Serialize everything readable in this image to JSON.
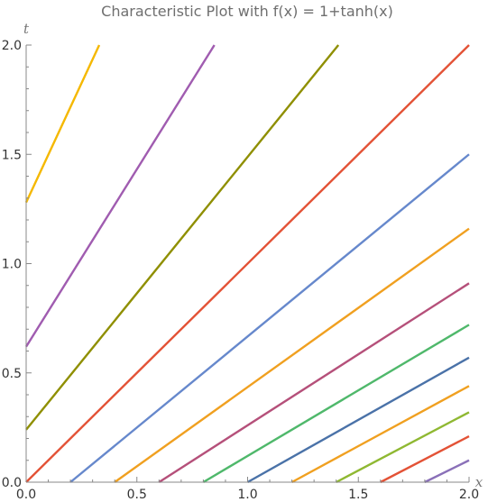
{
  "chart_data": {
    "type": "line",
    "title": "Characteristic Plot with f(x) = 1+tanh(x)",
    "xlabel": "x",
    "ylabel": "t",
    "xlim": [
      0,
      2
    ],
    "ylim": [
      0,
      2
    ],
    "x_ticks": [
      "0.0",
      "0.5",
      "1.0",
      "1.5",
      "2.0"
    ],
    "y_ticks": [
      "0.0",
      "0.5",
      "1.0",
      "1.5",
      "2.0"
    ],
    "grid": false,
    "legend": "none",
    "series": [
      {
        "color": "#f5b800",
        "points": [
          [
            0.0,
            1.28
          ],
          [
            0.33,
            2.0
          ]
        ]
      },
      {
        "color": "#a05cb0",
        "points": [
          [
            0.0,
            0.62
          ],
          [
            0.85,
            2.0
          ]
        ]
      },
      {
        "color": "#8f8f00",
        "points": [
          [
            0.0,
            0.24
          ],
          [
            1.41,
            2.0
          ]
        ]
      },
      {
        "color": "#e35236",
        "points": [
          [
            0.0,
            0.0
          ],
          [
            2.0,
            2.0
          ]
        ]
      },
      {
        "color": "#6688cc",
        "points": [
          [
            0.2,
            0.0
          ],
          [
            2.0,
            1.5
          ]
        ]
      },
      {
        "color": "#f0a020",
        "points": [
          [
            0.4,
            0.0
          ],
          [
            2.0,
            1.16
          ]
        ]
      },
      {
        "color": "#b5507a",
        "points": [
          [
            0.6,
            0.0
          ],
          [
            2.0,
            0.91
          ]
        ]
      },
      {
        "color": "#4fb86b",
        "points": [
          [
            0.8,
            0.0
          ],
          [
            2.0,
            0.72
          ]
        ]
      },
      {
        "color": "#4a72a8",
        "points": [
          [
            1.0,
            0.0
          ],
          [
            2.0,
            0.57
          ]
        ]
      },
      {
        "color": "#f0a020",
        "points": [
          [
            1.2,
            0.0
          ],
          [
            2.0,
            0.44
          ]
        ]
      },
      {
        "color": "#8fb832",
        "points": [
          [
            1.4,
            0.0
          ],
          [
            2.0,
            0.32
          ]
        ]
      },
      {
        "color": "#e35236",
        "points": [
          [
            1.6,
            0.0
          ],
          [
            2.0,
            0.21
          ]
        ]
      },
      {
        "color": "#8a70b8",
        "points": [
          [
            1.8,
            0.0
          ],
          [
            2.0,
            0.1
          ]
        ]
      }
    ]
  }
}
